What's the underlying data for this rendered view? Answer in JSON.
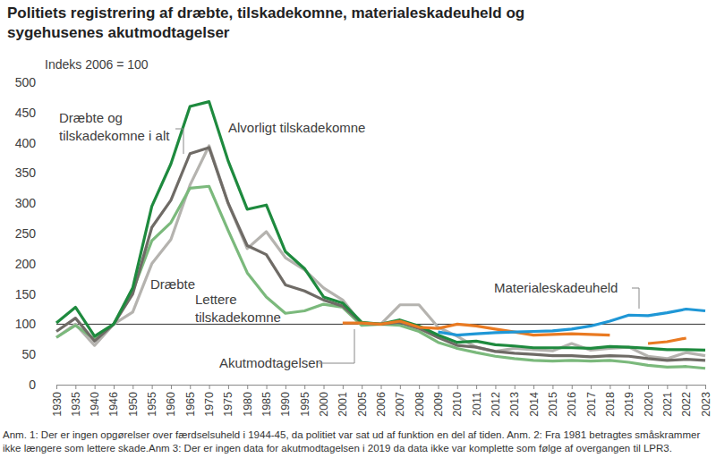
{
  "chart_data": {
    "type": "line",
    "title": "Politiets registrering af dræbte, tilskadekomne, materialeskadeuheld og sygehusenes akutmodtagelser",
    "subtitle": "Indeks 2006 = 100",
    "note": "Anm. 1: Der er ingen opgørelser over færdselsuheld i 1944-45, da politiet var sat ud af funktion en del af tiden. Anm. 2: Fra 1981 betragtes småskrammer ikke længere som lettere skade.Anm 3: Der er ingen data for akutmodtagelsen i 2019 da data ikke var komplette som følge af overgangen til LPR3.",
    "categories": [
      "1930",
      "1935",
      "1940",
      "1946",
      "1950",
      "1955",
      "1960",
      "1965",
      "1970",
      "1975",
      "1980",
      "1985",
      "1990",
      "1995",
      "2000",
      "2001",
      "2005",
      "2006",
      "2007",
      "2008",
      "2009",
      "2010",
      "2011",
      "2012",
      "2013",
      "2014",
      "2015",
      "2016",
      "2017",
      "2018",
      "2019",
      "2020",
      "2021",
      "2022",
      "2023"
    ],
    "series": [
      {
        "name": "Dræbte",
        "color": "#b5b3af",
        "values": [
          78,
          100,
          65,
          100,
          120,
          200,
          240,
          330,
          395,
          300,
          225,
          253,
          210,
          190,
          160,
          140,
          100,
          100,
          132,
          132,
          95,
          80,
          62,
          55,
          60,
          58,
          56,
          68,
          57,
          60,
          62,
          47,
          43,
          53,
          48
        ]
      },
      {
        "name": "Lettere tilskadekomne",
        "color": "#7bb97c",
        "values": [
          78,
          98,
          75,
          100,
          155,
          238,
          268,
          325,
          328,
          255,
          185,
          145,
          118,
          122,
          133,
          128,
          98,
          100,
          98,
          88,
          70,
          60,
          53,
          47,
          43,
          40,
          39,
          40,
          39,
          40,
          37,
          32,
          29,
          30,
          27
        ]
      },
      {
        "name": "Dræbte og tilskadekomne i alt",
        "color": "#6f6b66",
        "values": [
          88,
          110,
          72,
          100,
          150,
          260,
          305,
          382,
          392,
          300,
          230,
          215,
          165,
          155,
          140,
          130,
          102,
          100,
          103,
          93,
          78,
          65,
          62,
          55,
          52,
          50,
          48,
          48,
          46,
          48,
          47,
          43,
          40,
          42,
          40
        ]
      },
      {
        "name": "Alvorligt tilskadekomne",
        "color": "#1e8a3e",
        "values": [
          102,
          128,
          80,
          100,
          160,
          295,
          365,
          460,
          468,
          370,
          290,
          297,
          220,
          192,
          145,
          135,
          103,
          100,
          107,
          97,
          82,
          70,
          72,
          66,
          64,
          61,
          61,
          61,
          60,
          63,
          62,
          60,
          58,
          58,
          57
        ]
      },
      {
        "name": "Akutmodtagelsen",
        "color": "#e97a22",
        "values": [
          null,
          null,
          null,
          null,
          null,
          null,
          null,
          null,
          null,
          null,
          null,
          null,
          null,
          null,
          null,
          102,
          102,
          100,
          105,
          95,
          93,
          100,
          97,
          92,
          87,
          82,
          83,
          84,
          83,
          82,
          null,
          68,
          71,
          77,
          null
        ]
      },
      {
        "name": "Materialeskadeuheld",
        "color": "#1f97d6",
        "values": [
          null,
          null,
          null,
          null,
          null,
          null,
          null,
          null,
          null,
          null,
          null,
          null,
          null,
          null,
          null,
          null,
          null,
          null,
          null,
          null,
          87,
          82,
          84,
          86,
          87,
          88,
          89,
          92,
          97,
          105,
          115,
          114,
          119,
          125,
          122
        ]
      }
    ],
    "baseline": 100,
    "ylim": [
      0,
      500
    ],
    "yticks": [
      0,
      50,
      100,
      150,
      200,
      250,
      300,
      350,
      400,
      450,
      500
    ],
    "grid": false
  }
}
